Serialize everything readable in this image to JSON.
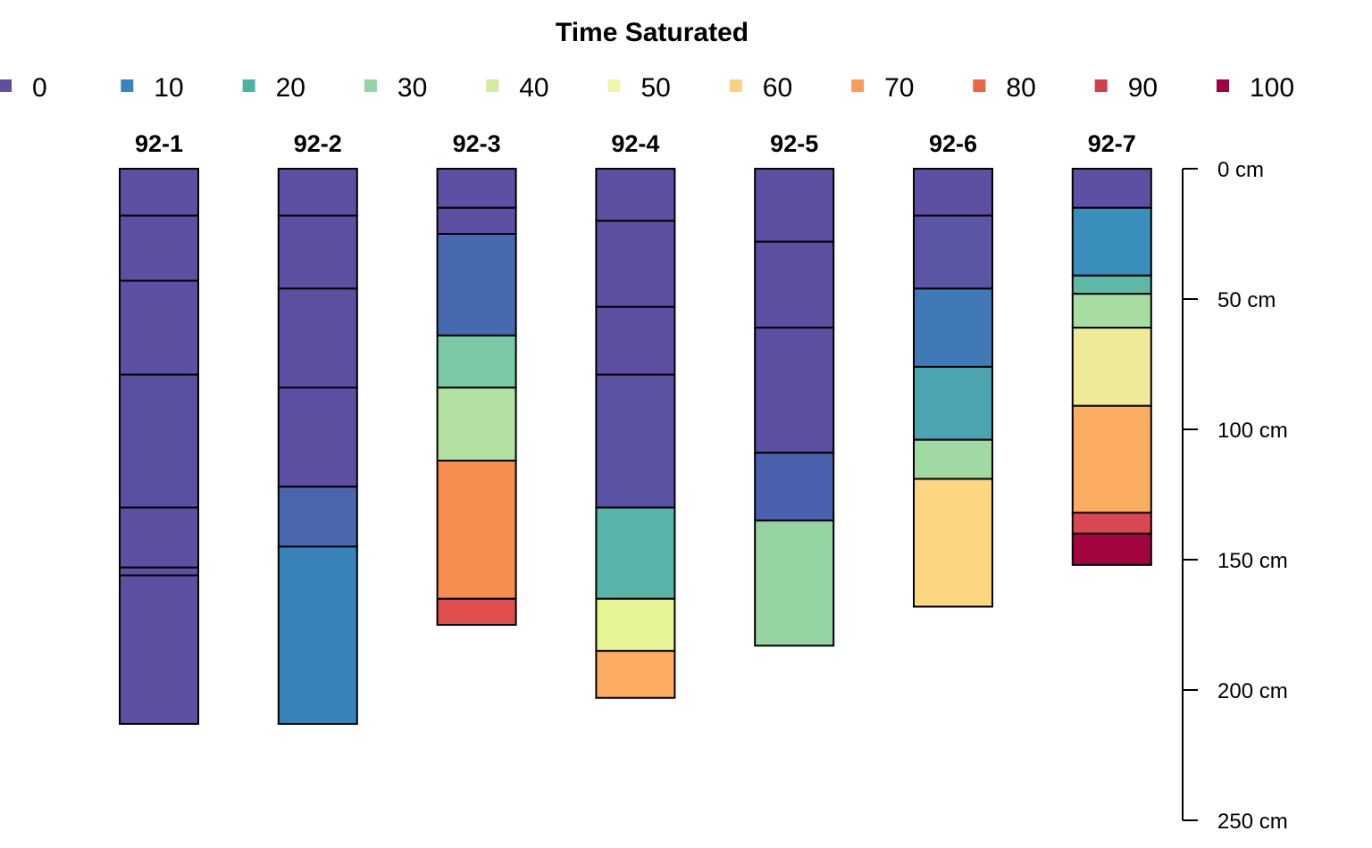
{
  "chart_data": {
    "type": "bar",
    "title": "Time Saturated",
    "legend": {
      "placement": "top",
      "entries": [
        {
          "label": "0",
          "color": "#5E4FA2"
        },
        {
          "label": "10",
          "color": "#3288BD"
        },
        {
          "label": "20",
          "color": "#4EB3A7"
        },
        {
          "label": "30",
          "color": "#94D4A4"
        },
        {
          "label": "40",
          "color": "#D0EC9C"
        },
        {
          "label": "50",
          "color": "#F1F5A6"
        },
        {
          "label": "60",
          "color": "#FDD27F"
        },
        {
          "label": "70",
          "color": "#F99D59"
        },
        {
          "label": "80",
          "color": "#EC6545"
        },
        {
          "label": "90",
          "color": "#D1404E"
        },
        {
          "label": "100",
          "color": "#9E0142"
        }
      ]
    },
    "depth_axis": {
      "range": [
        0,
        250
      ],
      "ticks": [
        0,
        50,
        100,
        150,
        200,
        250
      ],
      "tick_labels": [
        "0 cm",
        "50 cm",
        "100 cm",
        "150 cm",
        "200 cm",
        "250 cm"
      ],
      "placement": "right"
    },
    "profiles": [
      {
        "name": "92-1",
        "horizons": [
          {
            "top": 0,
            "bottom": 18,
            "color": "#5E4FA2"
          },
          {
            "top": 18,
            "bottom": 43,
            "color": "#5E4FA2"
          },
          {
            "top": 43,
            "bottom": 79,
            "color": "#5E4FA2"
          },
          {
            "top": 79,
            "bottom": 130,
            "color": "#5A50A1"
          },
          {
            "top": 130,
            "bottom": 153,
            "color": "#5E4FA2"
          },
          {
            "top": 153,
            "bottom": 156,
            "color": "#5E4FA2"
          },
          {
            "top": 156,
            "bottom": 213,
            "color": "#5E4FA2"
          }
        ]
      },
      {
        "name": "92-2",
        "horizons": [
          {
            "top": 0,
            "bottom": 18,
            "color": "#5E4FA2"
          },
          {
            "top": 18,
            "bottom": 46,
            "color": "#5E4FA2"
          },
          {
            "top": 46,
            "bottom": 84,
            "color": "#5E4FA2"
          },
          {
            "top": 84,
            "bottom": 122,
            "color": "#5E4FA2"
          },
          {
            "top": 122,
            "bottom": 145,
            "color": "#4B65AE"
          },
          {
            "top": 145,
            "bottom": 213,
            "color": "#3784BB"
          }
        ]
      },
      {
        "name": "92-3",
        "horizons": [
          {
            "top": 0,
            "bottom": 15,
            "color": "#5E4FA2"
          },
          {
            "top": 15,
            "bottom": 25,
            "color": "#5E4FA2"
          },
          {
            "top": 25,
            "bottom": 64,
            "color": "#4769B0"
          },
          {
            "top": 64,
            "bottom": 84,
            "color": "#7ACBA5"
          },
          {
            "top": 84,
            "bottom": 112,
            "color": "#B4E0A2"
          },
          {
            "top": 112,
            "bottom": 165,
            "color": "#F88D52"
          },
          {
            "top": 165,
            "bottom": 175,
            "color": "#E04F4D"
          }
        ]
      },
      {
        "name": "92-4",
        "horizons": [
          {
            "top": 0,
            "bottom": 20,
            "color": "#5E4FA2"
          },
          {
            "top": 20,
            "bottom": 53,
            "color": "#5E4FA2"
          },
          {
            "top": 53,
            "bottom": 79,
            "color": "#5E4FA2"
          },
          {
            "top": 79,
            "bottom": 130,
            "color": "#5A53A3"
          },
          {
            "top": 130,
            "bottom": 165,
            "color": "#59B5AA"
          },
          {
            "top": 165,
            "bottom": 185,
            "color": "#E7F397"
          },
          {
            "top": 185,
            "bottom": 203,
            "color": "#FDAD61"
          }
        ]
      },
      {
        "name": "92-5",
        "horizons": [
          {
            "top": 0,
            "bottom": 28,
            "color": "#5E4FA2"
          },
          {
            "top": 28,
            "bottom": 61,
            "color": "#5E4FA2"
          },
          {
            "top": 61,
            "bottom": 109,
            "color": "#5B4FA2"
          },
          {
            "top": 109,
            "bottom": 135,
            "color": "#4A62AD"
          },
          {
            "top": 135,
            "bottom": 183,
            "color": "#96D4A3"
          }
        ]
      },
      {
        "name": "92-6",
        "horizons": [
          {
            "top": 0,
            "bottom": 18,
            "color": "#5E4FA2"
          },
          {
            "top": 18,
            "bottom": 46,
            "color": "#5A55A5"
          },
          {
            "top": 46,
            "bottom": 76,
            "color": "#4178B6"
          },
          {
            "top": 76,
            "bottom": 104,
            "color": "#4CA3B2"
          },
          {
            "top": 104,
            "bottom": 119,
            "color": "#A1D9A2"
          },
          {
            "top": 119,
            "bottom": 168,
            "color": "#FDD681"
          }
        ]
      },
      {
        "name": "92-7",
        "horizons": [
          {
            "top": 0,
            "bottom": 15,
            "color": "#5E4FA2"
          },
          {
            "top": 15,
            "bottom": 41,
            "color": "#3A8FBC"
          },
          {
            "top": 41,
            "bottom": 48,
            "color": "#5CB9A6"
          },
          {
            "top": 48,
            "bottom": 61,
            "color": "#A8DDA2"
          },
          {
            "top": 61,
            "bottom": 91,
            "color": "#EFEA97"
          },
          {
            "top": 91,
            "bottom": 132,
            "color": "#FDAD61"
          },
          {
            "top": 132,
            "bottom": 140,
            "color": "#DA4752"
          },
          {
            "top": 140,
            "bottom": 152,
            "color": "#A2053F"
          }
        ]
      }
    ]
  }
}
